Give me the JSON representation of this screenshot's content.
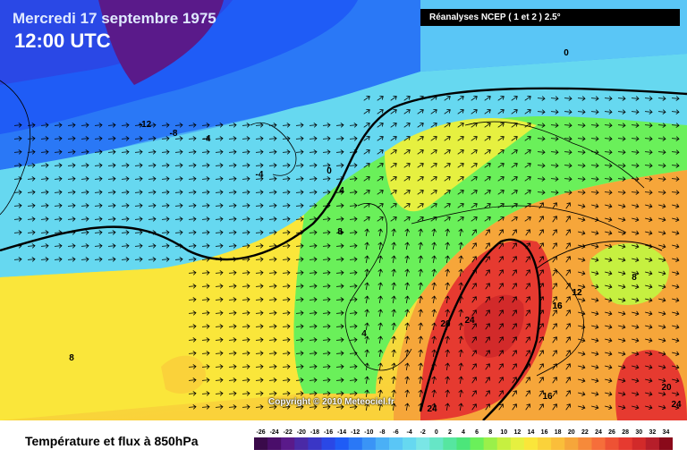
{
  "header": {
    "date": "Mercredi 17 septembre 1975",
    "time": "12:00 UTC"
  },
  "source": "Réanalyses NCEP ( 1 et 2 ) 2.5°",
  "copyright": "Copyright © 2010 Meteociel.fr",
  "title": "Température et flux à 850hPa",
  "legend": {
    "ticks": [
      "-26",
      "-24",
      "-22",
      "-20",
      "-18",
      "-16",
      "-14",
      "-12",
      "-10",
      "-8",
      "-6",
      "-4",
      "-2",
      "0",
      "2",
      "4",
      "6",
      "8",
      "10",
      "12",
      "14",
      "16",
      "18",
      "20",
      "22",
      "24",
      "26",
      "28",
      "30",
      "32",
      "34"
    ],
    "colors": [
      "#3a0a4a",
      "#4a0e6a",
      "#5a1a8a",
      "#4a2aa6",
      "#3a36c6",
      "#2a48e6",
      "#1f5cf6",
      "#2a78f6",
      "#3a94f6",
      "#4ab0f6",
      "#5ac6f6",
      "#66d8f0",
      "#7ae6e6",
      "#66e6c6",
      "#56e6a0",
      "#4ce67a",
      "#6af05a",
      "#9af04a",
      "#c6f040",
      "#e6f040",
      "#fae63a",
      "#fad23a",
      "#fabe3a",
      "#f6a63a",
      "#f68a3a",
      "#f66e3a",
      "#ee5234",
      "#e63a30",
      "#d22a2a",
      "#b61e2a",
      "#8a0a1a"
    ]
  },
  "isotherm_labels": [
    "-12",
    "-8",
    "-4",
    "-4",
    "0",
    "4",
    "8",
    "0",
    "4",
    "8",
    "12",
    "16",
    "20",
    "24",
    "24",
    "16",
    "20",
    "24",
    "12",
    "8",
    "16"
  ]
}
